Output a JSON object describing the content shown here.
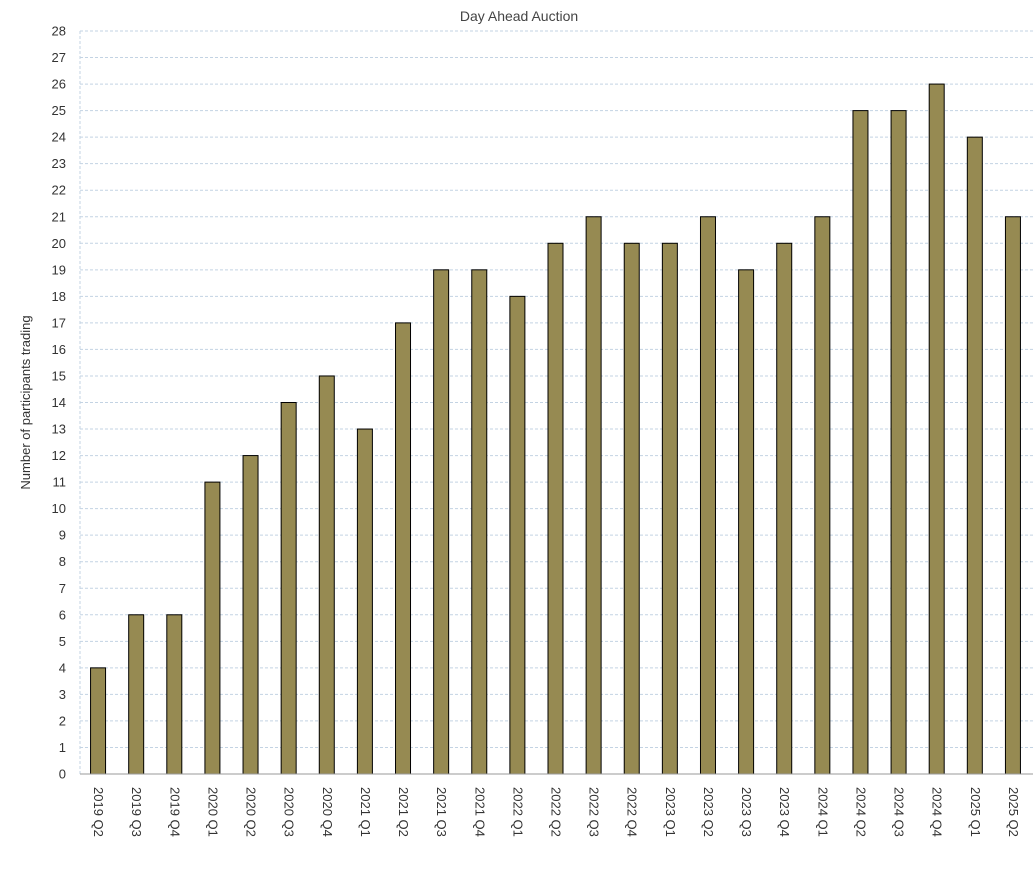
{
  "chart_data": {
    "type": "bar",
    "title": "Day Ahead Auction",
    "ylabel": "Number of participants trading",
    "xlabel": "",
    "ylim": [
      0,
      28
    ],
    "ytick_step": 1,
    "grid": true,
    "bar_color": "#968a52",
    "categories": [
      "2019 Q2",
      "2019 Q3",
      "2019 Q4",
      "2020 Q1",
      "2020 Q2",
      "2020 Q3",
      "2020 Q4",
      "2021 Q1",
      "2021 Q2",
      "2021 Q3",
      "2021 Q4",
      "2022 Q1",
      "2022 Q2",
      "2022 Q3",
      "2022 Q4",
      "2023 Q1",
      "2023 Q2",
      "2023 Q3",
      "2023 Q4",
      "2024 Q1",
      "2024 Q2",
      "2024 Q3",
      "2024 Q4",
      "2025 Q1",
      "2025 Q2"
    ],
    "values": [
      4,
      6,
      6,
      11,
      12,
      14,
      15,
      13,
      17,
      19,
      19,
      18,
      20,
      21,
      20,
      20,
      21,
      19,
      20,
      21,
      25,
      25,
      26,
      24,
      21
    ]
  }
}
